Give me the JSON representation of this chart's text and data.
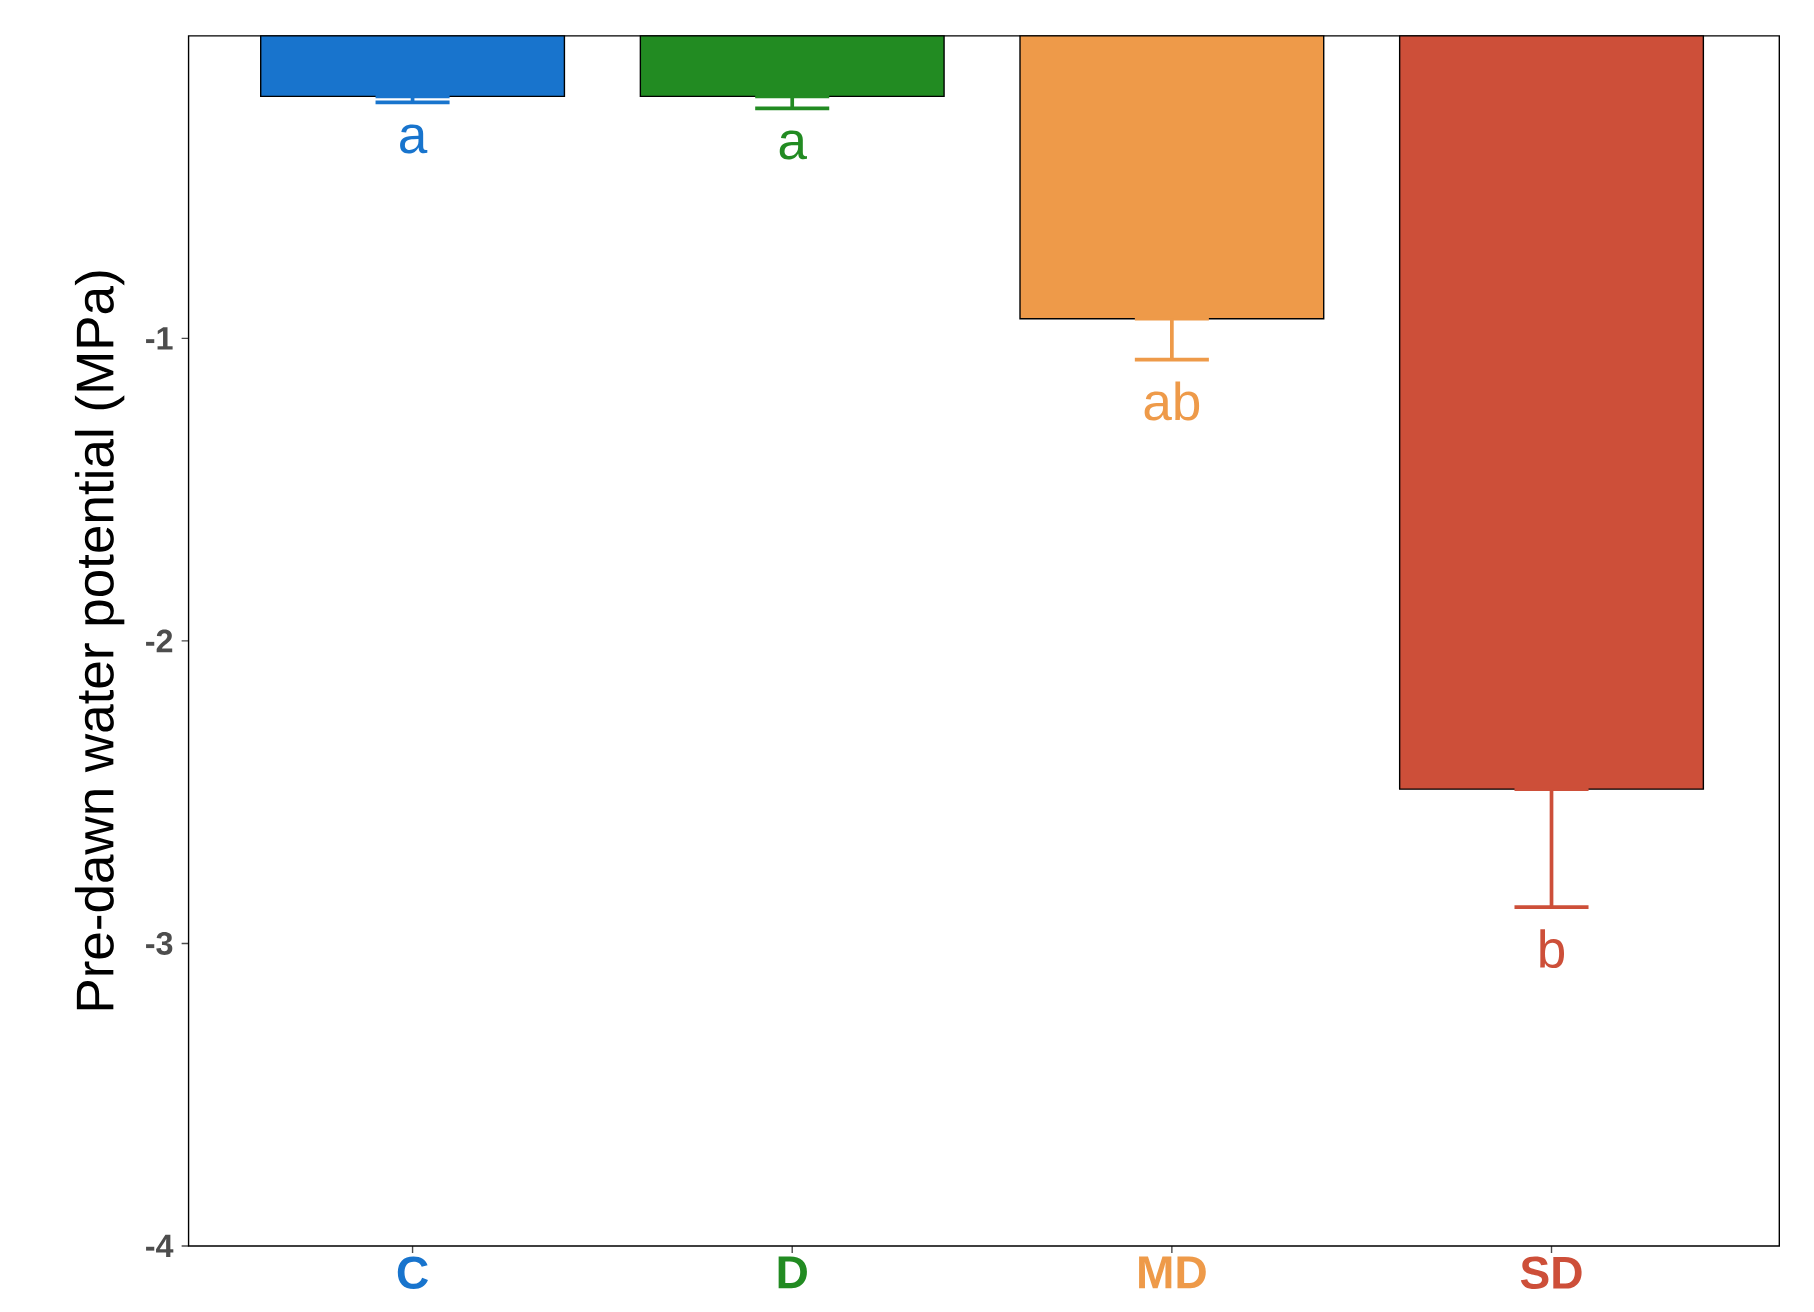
{
  "chart_data": {
    "type": "bar",
    "ylabel": "Pre-dawn water potential (MPa)",
    "categories": [
      "C",
      "D",
      "MD",
      "SD"
    ],
    "values": [
      -0.2,
      -0.2,
      -0.935,
      -2.49
    ],
    "errors": [
      [
        -0.22,
        -0.2
      ],
      [
        -0.24,
        -0.2
      ],
      [
        -1.07,
        -0.935
      ],
      [
        -2.88,
        -2.49
      ]
    ],
    "colors": [
      "#1874cd",
      "#228b22",
      "#ee9a49",
      "#cd4f39"
    ],
    "ylim": [
      -4,
      0
    ],
    "yticks": [
      -4,
      -3,
      -2,
      -1
    ],
    "grid": false,
    "annotations": [
      "a",
      "a",
      "ab",
      "b"
    ]
  }
}
